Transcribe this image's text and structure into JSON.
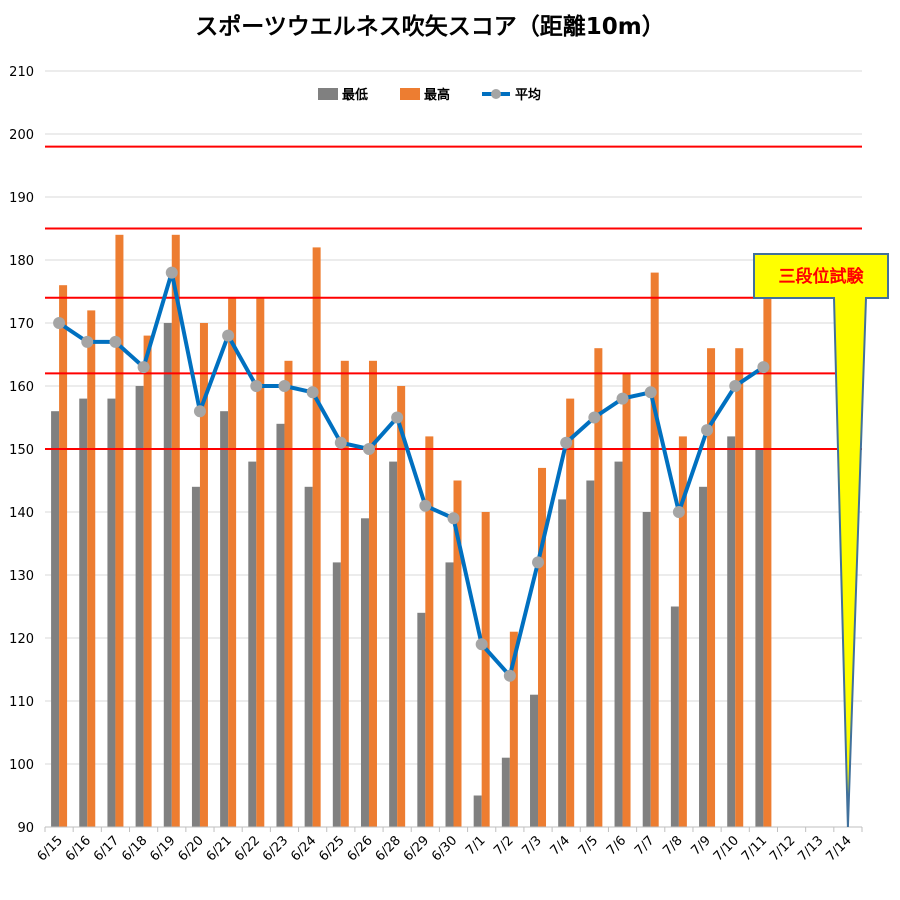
{
  "chart_data": {
    "type": "bar",
    "title": "スポーツウエルネス吹矢スコア（距離10m）",
    "categories": [
      "6/15",
      "6/16",
      "6/17",
      "6/18",
      "6/19",
      "6/20",
      "6/21",
      "6/22",
      "6/23",
      "6/24",
      "6/25",
      "6/26",
      "6/28",
      "6/29",
      "6/30",
      "7/1",
      "7/2",
      "7/3",
      "7/4",
      "7/5",
      "7/6",
      "7/7",
      "7/8",
      "7/9",
      "7/10",
      "7/11",
      "7/12",
      "7/13",
      "7/14"
    ],
    "ylim": [
      90,
      210
    ],
    "yticks": [
      90,
      100,
      110,
      120,
      130,
      140,
      150,
      160,
      170,
      180,
      190,
      200,
      210
    ],
    "grid": true,
    "legend_position": "top-center",
    "series": [
      {
        "name": "最低",
        "kind": "bar",
        "color": "#808080",
        "values": [
          156,
          158,
          158,
          160,
          170,
          144,
          156,
          148,
          154,
          144,
          132,
          139,
          148,
          124,
          132,
          95,
          101,
          111,
          142,
          145,
          148,
          140,
          125,
          144,
          152,
          150,
          null,
          null,
          null
        ]
      },
      {
        "name": "最高",
        "kind": "bar",
        "color": "#ed7d31",
        "values": [
          176,
          172,
          184,
          168,
          184,
          170,
          174,
          174,
          164,
          182,
          164,
          164,
          160,
          152,
          145,
          140,
          121,
          147,
          158,
          166,
          162,
          178,
          152,
          166,
          166,
          174,
          null,
          null,
          null
        ]
      },
      {
        "name": "平均",
        "kind": "line",
        "color": "#0070c0",
        "marker_color": "#a5a5a5",
        "values": [
          170,
          167,
          167,
          163,
          178,
          156,
          168,
          160,
          160,
          159,
          151,
          150,
          155,
          141,
          139,
          119,
          114,
          132,
          151,
          155,
          158,
          159,
          140,
          153,
          160,
          163,
          null,
          null,
          null
        ]
      }
    ],
    "reference_lines": [
      {
        "start": 198,
        "end": 198,
        "color": "#ff0000"
      },
      {
        "start": 185,
        "end": 185,
        "color": "#ff0000"
      },
      {
        "start": 174,
        "end": 174,
        "color": "#ff0000"
      },
      {
        "start": 162,
        "end": 162,
        "color": "#ff0000"
      },
      {
        "start": 150,
        "end": 150,
        "color": "#ff0000"
      }
    ],
    "callout": {
      "text": "三段位試験",
      "target_category": "7/14",
      "target_value": 90,
      "fill": "#ffff00",
      "border": "#41719c",
      "text_color": "#ff0000"
    }
  }
}
